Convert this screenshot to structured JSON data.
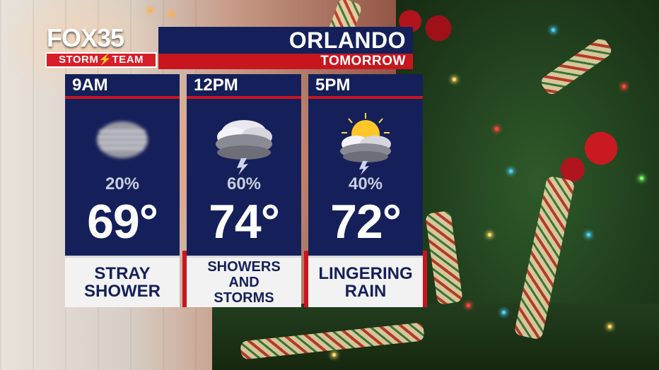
{
  "brand": {
    "station_number": "35",
    "station_name": "FOX",
    "team_label": "STORM⚡TEAM"
  },
  "header": {
    "city": "ORLANDO",
    "day": "TOMORROW"
  },
  "colors": {
    "navy": "#15205a",
    "red": "#c8161f",
    "white": "#ffffff",
    "light_gray": "#f2f2f2"
  },
  "forecast": [
    {
      "time": "9AM",
      "pop": "20%",
      "temp": "69°",
      "desc_line1": "STRAY",
      "desc_line2": "SHOWER",
      "icon": "haze-cloud-icon"
    },
    {
      "time": "12PM",
      "pop": "60%",
      "temp": "74°",
      "desc_line1": "SHOWERS",
      "desc_line2": "AND",
      "desc_line3": "STORMS",
      "icon": "thunderstorm-icon"
    },
    {
      "time": "5PM",
      "pop": "40%",
      "temp": "72°",
      "desc_line1": "LINGERING",
      "desc_line2": "RAIN",
      "icon": "sun-thunderstorm-icon"
    }
  ]
}
